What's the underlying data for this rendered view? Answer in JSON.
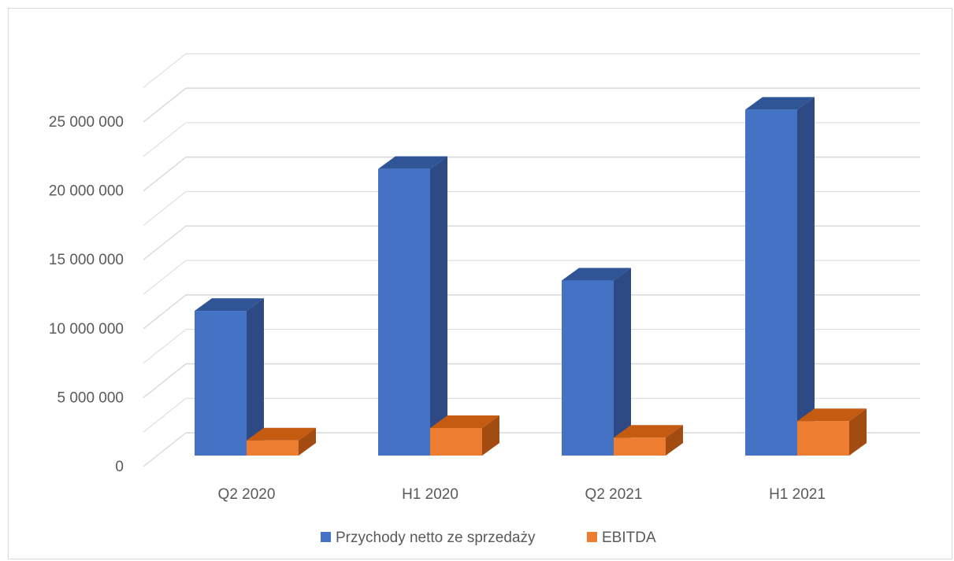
{
  "chart_data": {
    "type": "bar",
    "categories": [
      "Q2 2020",
      "H1 2020",
      "Q2 2021",
      "H1 2021"
    ],
    "series": [
      {
        "name": "Przychody netto ze sprzedaży",
        "values": [
          10500000,
          20800000,
          12700000,
          25100000
        ]
      },
      {
        "name": "EBITDA",
        "values": [
          1100000,
          2000000,
          1300000,
          2500000
        ]
      }
    ],
    "yticks": [
      "0",
      "5 000 000",
      "10 000 000",
      "15 000 000",
      "20 000 000",
      "25 000 000"
    ],
    "ylim": [
      0,
      27500000
    ],
    "grid": true,
    "legend_position": "bottom",
    "style": "3d-clustered-column"
  },
  "colors": {
    "series": [
      {
        "front": "#4472c4",
        "top": "#2f5597",
        "side": "#2e4a84"
      },
      {
        "front": "#ed7d31",
        "top": "#c55a11",
        "side": "#a34c12"
      }
    ],
    "grid": "#d9d9d9",
    "text": "#595959"
  }
}
